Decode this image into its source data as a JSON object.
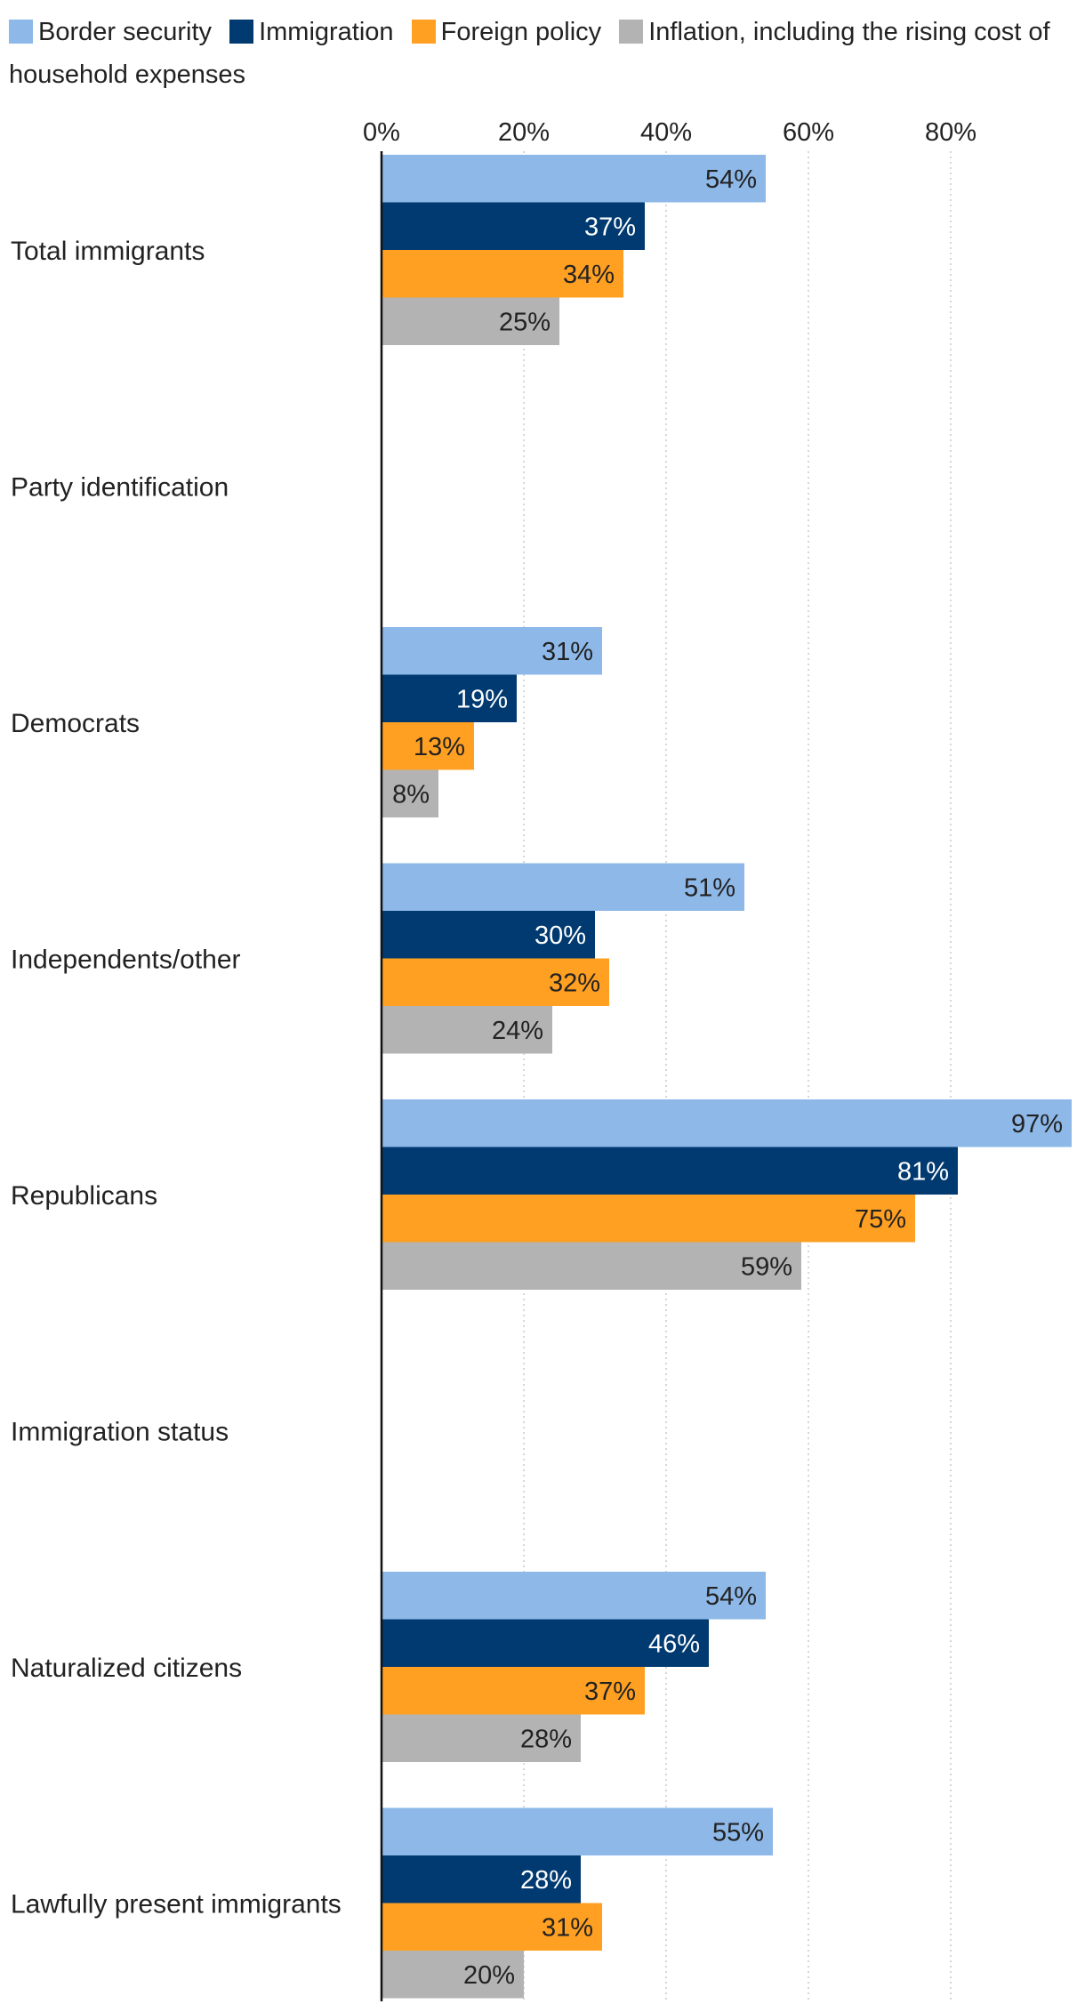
{
  "chart_data": {
    "type": "bar",
    "orientation": "horizontal",
    "title": "",
    "xlabel": "",
    "ylabel": "",
    "xlim": [
      0,
      100
    ],
    "xticks": [
      0,
      20,
      40,
      60,
      80
    ],
    "xtick_labels": [
      "0%",
      "20%",
      "40%",
      "60%",
      "80%"
    ],
    "grid": "vertical dotted",
    "legend_position": "top",
    "colors": [
      "#8db8e8",
      "#003a70",
      "#ffa022",
      "#b3b3b3"
    ],
    "label_colors": [
      "#222222",
      "#ffffff",
      "#222222",
      "#222222"
    ],
    "series": [
      {
        "name": "Border security",
        "values": [
          54,
          null,
          31,
          51,
          97,
          null,
          54,
          55
        ]
      },
      {
        "name": "Immigration",
        "values": [
          37,
          null,
          19,
          30,
          81,
          null,
          46,
          28
        ]
      },
      {
        "name": "Foreign policy",
        "values": [
          34,
          null,
          13,
          32,
          75,
          null,
          37,
          31
        ]
      },
      {
        "name": "Inflation, including the rising cost of household expenses",
        "values": [
          25,
          null,
          8,
          24,
          59,
          null,
          28,
          20
        ]
      }
    ],
    "categories": [
      "Total immigrants",
      "Party identification",
      "Democrats",
      "Independents/other",
      "Republicans",
      "Immigration status",
      "Naturalized citizens",
      "Lawfully present immigrants"
    ],
    "value_labels": [
      [
        "54%",
        null,
        "31%",
        "51%",
        "97%",
        null,
        "54%",
        "55%"
      ],
      [
        "37%",
        null,
        "19%",
        "30%",
        "81%",
        null,
        "46%",
        "28%"
      ],
      [
        "34%",
        null,
        "13%",
        "32%",
        "75%",
        null,
        "37%",
        "31%"
      ],
      [
        "25%",
        null,
        "8%",
        "24%",
        "59%",
        null,
        "28%",
        "20%"
      ]
    ]
  }
}
